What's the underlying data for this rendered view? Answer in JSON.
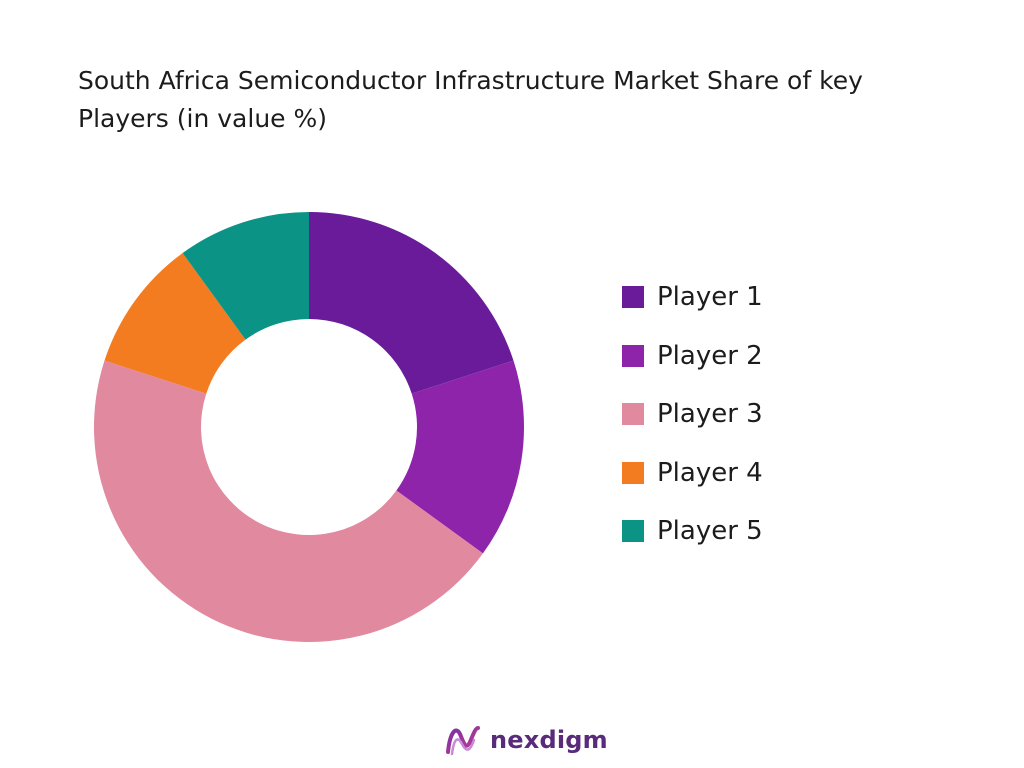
{
  "chart_data": {
    "type": "pie",
    "title": "South Africa Semiconductor Infrastructure Market Share of key Players (in value %)",
    "categories": [
      "Player 1",
      "Player 2",
      "Player 3",
      "Player 4",
      "Player 5"
    ],
    "values": [
      20,
      15,
      45,
      10,
      10
    ],
    "colors": [
      "#6a1b9a",
      "#8e24aa",
      "#e0899f",
      "#f47c20",
      "#0b9385"
    ],
    "donut": true,
    "legend_position": "right"
  },
  "brand": {
    "name": "nexdigm",
    "logo_icon": "nexdigm-logo-icon"
  }
}
